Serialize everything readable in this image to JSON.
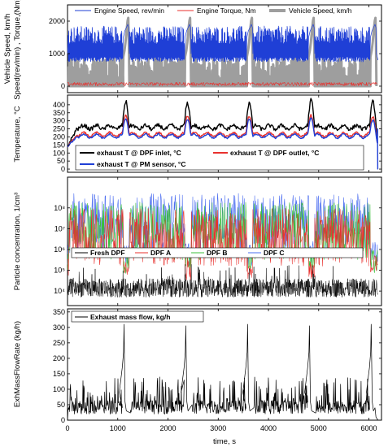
{
  "x_axis": {
    "label": "time, s",
    "range": [
      0,
      6250
    ],
    "ticks": [
      0,
      1000,
      2000,
      3000,
      4000,
      5000,
      6000
    ],
    "tick_labels": [
      "0",
      "1000",
      "2000",
      "3000",
      "4000",
      "5000",
      "6000"
    ]
  },
  "chart_data": [
    {
      "type": "line",
      "panel": "speed-torque",
      "ylabel": "Vehicle Speed, km/h   Speed(rev/min), Torque,(Nm)",
      "ylabel_parts": [
        "Vehicle Speed, km/h",
        "Speed(rev/min) , Torque,(Nm)"
      ],
      "ylim": [
        -200,
        2500
      ],
      "yticks": [
        0,
        1000,
        2000
      ],
      "ytick_labels": [
        "0",
        "1000",
        "2000"
      ],
      "legend": [
        "Engine Speed, rev/min",
        "Engine Torque, Nm",
        "Vehicle Speed, km/h"
      ],
      "legend_placement": "top",
      "series": [
        {
          "name": "Engine Speed, rev/min",
          "color": "#1f3fd6",
          "pattern": "cycle-repeats",
          "cycle_length_s": 1230,
          "cycles": 5,
          "typical_range": [
            700,
            1800
          ],
          "peak": 1900
        },
        {
          "name": "Engine Torque, Nm",
          "color": "#e8312e",
          "typical_range": [
            0,
            150
          ]
        },
        {
          "name": "Vehicle Speed, km/h",
          "color": "#9e9e9e",
          "typical_range": [
            100,
            900
          ],
          "end_of_cycle_peak": 2100
        }
      ]
    },
    {
      "type": "line",
      "panel": "temperature",
      "ylabel": "Temperature, °C",
      "ylim": [
        -20,
        460
      ],
      "yticks": [
        0,
        50,
        100,
        150,
        200,
        250,
        300,
        350,
        400
      ],
      "ytick_labels": [
        "0",
        "50",
        "100",
        "150",
        "200",
        "250",
        "300",
        "350",
        "400"
      ],
      "legend": [
        "exhaust T @ DPF inlet, °C",
        "exhaust T @ DPF outlet, °C",
        "exhaust T @ PM sensor, °C"
      ],
      "legend_placement": "bottom",
      "series": [
        {
          "name": "exhaust T @ DPF inlet, °C",
          "color": "#000000",
          "start": 140,
          "typical": 260,
          "peaks": [
            420,
            410,
            410,
            430,
            420
          ]
        },
        {
          "name": "exhaust T @ DPF outlet, °C",
          "color": "#e8312e",
          "start": 140,
          "typical": 215,
          "peaks": [
            335,
            330,
            330,
            335,
            325
          ]
        },
        {
          "name": "exhaust T @ PM sensor, °C",
          "color": "#1f3fd6",
          "start": 140,
          "typical": 205,
          "peaks": [
            315,
            310,
            310,
            315,
            305
          ],
          "end_value": 0
        }
      ]
    },
    {
      "type": "line",
      "panel": "particle-concentration",
      "ylabel": "Particle concentration, 1/cm³",
      "yscale": "log",
      "ylim": [
        2000,
        3000000000
      ],
      "yticks": [
        10000,
        100000,
        1000000,
        10000000,
        100000000
      ],
      "ytick_labels": [
        "10⁴",
        "10⁵",
        "10⁶",
        "10⁷",
        "10⁸"
      ],
      "legend": [
        "Fresh DPF",
        "DPF A",
        "DPF B",
        "DPF C"
      ],
      "legend_placement": "middle",
      "series": [
        {
          "name": "Fresh DPF",
          "color": "#000000",
          "typical_range": [
            5000,
            60000
          ]
        },
        {
          "name": "DPF A",
          "color": "#e8312e",
          "typical_range": [
            1000000,
            100000000
          ],
          "dips_to": 150000
        },
        {
          "name": "DPF B",
          "color": "#3bbf3b",
          "typical_range": [
            2000000,
            200000000
          ]
        },
        {
          "name": "DPF C",
          "color": "#4a6cf0",
          "typical_range": [
            5000000,
            500000000
          ]
        }
      ]
    },
    {
      "type": "line",
      "panel": "exhaust-mass-flow",
      "ylabel": "ExhMassFlowRate (kg/h)",
      "ylim": [
        0,
        360
      ],
      "yticks": [
        0,
        50,
        100,
        150,
        200,
        250,
        300,
        350
      ],
      "ytick_labels": [
        "0",
        "50",
        "100",
        "150",
        "200",
        "250",
        "300",
        "350"
      ],
      "legend": [
        "Exhaust mass flow, kg/h"
      ],
      "legend_placement": "top-left",
      "series": [
        {
          "name": "Exhaust mass flow, kg/h",
          "color": "#000000",
          "typical_range": [
            20,
            130
          ],
          "spike_times": [
            1130,
            2360,
            3590,
            4820,
            6050
          ],
          "spike_values": [
            310,
            305,
            310,
            305,
            310
          ]
        }
      ]
    }
  ]
}
